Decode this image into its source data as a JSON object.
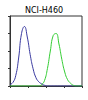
{
  "chart_data": {
    "type": "line",
    "title": "NCI-H460",
    "x": [
      0,
      4,
      8,
      12,
      16,
      20,
      24,
      28,
      32,
      36,
      40,
      44,
      48,
      52,
      56,
      60,
      64,
      68,
      72,
      76,
      80,
      84,
      88,
      92,
      96,
      100
    ],
    "series": [
      {
        "color": "#3a3aa0",
        "values": [
          2,
          5,
          15,
          40,
          75,
          85,
          70,
          45,
          25,
          12,
          6,
          3,
          1,
          0,
          0,
          0,
          0,
          0,
          0,
          0,
          0,
          0,
          0,
          0,
          0,
          0
        ]
      },
      {
        "color": "#33cc33",
        "values": [
          0,
          0,
          0,
          0,
          0,
          0,
          0,
          0,
          0,
          0,
          0,
          2,
          8,
          25,
          50,
          72,
          75,
          60,
          38,
          20,
          9,
          4,
          1,
          0,
          0,
          0
        ]
      }
    ],
    "xlim": [
      0,
      100
    ],
    "xticks": [
      0,
      25,
      50,
      75,
      100
    ],
    "ylim": [
      0,
      100
    ],
    "yticks": [
      0,
      25,
      50,
      75,
      100
    ],
    "grid": false,
    "tick_labels": false
  }
}
